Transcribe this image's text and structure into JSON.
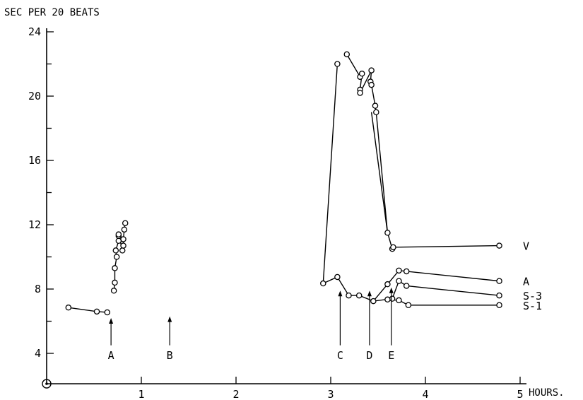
{
  "chart_data": {
    "type": "line",
    "title": "",
    "ylabel": "SEC PER 20 BEATS",
    "xlabel": "HOURS.",
    "xlim": [
      0,
      5
    ],
    "ylim": [
      2,
      24
    ],
    "xticks": [
      1,
      2,
      3,
      4,
      5
    ],
    "xtick_labels": [
      "1",
      "2",
      "3",
      "4",
      "5"
    ],
    "yticks": [
      4,
      8,
      12,
      16,
      20,
      24
    ],
    "ytick_labels": [
      "4",
      "8",
      "12",
      "16",
      "20",
      "24"
    ],
    "grid": false,
    "series": [
      {
        "name": "",
        "points": [
          [
            0.23,
            6.85
          ],
          [
            0.53,
            6.6
          ],
          [
            0.64,
            6.55
          ]
        ]
      },
      {
        "name": "",
        "points": [
          [
            0.71,
            7.9
          ],
          [
            0.72,
            8.4
          ],
          [
            0.72,
            9.3
          ],
          [
            0.74,
            10.0
          ],
          [
            0.73,
            10.4
          ],
          [
            0.76,
            11.0
          ],
          [
            0.76,
            11.3
          ],
          [
            0.76,
            11.4
          ],
          [
            0.8,
            10.4
          ],
          [
            0.81,
            10.7
          ],
          [
            0.81,
            11.1
          ],
          [
            0.82,
            11.7
          ],
          [
            0.83,
            12.1
          ]
        ]
      },
      {
        "name": "V",
        "points": [
          [
            2.92,
            8.35
          ],
          [
            3.07,
            22.0
          ],
          null,
          [
            3.17,
            22.6
          ],
          [
            3.31,
            21.2
          ],
          [
            3.33,
            21.4
          ],
          [
            3.31,
            20.4
          ],
          [
            3.31,
            20.2
          ],
          [
            3.43,
            21.6
          ],
          [
            3.42,
            20.9
          ],
          [
            3.43,
            20.7
          ],
          [
            3.47,
            19.4
          ],
          [
            3.48,
            19.0
          ],
          [
            3.6,
            11.5
          ],
          [
            3.65,
            10.5
          ],
          [
            3.66,
            10.6
          ],
          [
            4.78,
            10.7
          ]
        ]
      },
      {
        "name": "A",
        "points": [
          [
            2.92,
            8.35
          ],
          [
            3.07,
            8.75
          ],
          [
            3.19,
            7.6
          ],
          [
            3.3,
            7.6
          ],
          [
            3.45,
            7.25
          ],
          [
            3.6,
            8.3
          ],
          [
            3.72,
            9.15
          ],
          [
            3.8,
            9.1
          ],
          [
            4.78,
            8.5
          ]
        ]
      },
      {
        "name": "S-3",
        "points": [
          [
            3.45,
            7.25
          ],
          [
            3.65,
            7.4
          ],
          [
            3.72,
            8.5
          ],
          [
            3.8,
            8.2
          ],
          [
            4.78,
            7.6
          ]
        ]
      },
      {
        "name": "S-1",
        "points": [
          [
            3.6,
            7.35
          ],
          [
            3.72,
            7.3
          ],
          [
            3.82,
            7.0
          ],
          [
            4.78,
            7.0
          ]
        ]
      }
    ],
    "extra_segments": [
      [
        [
          3.43,
          19.0
        ],
        [
          3.6,
          11.5
        ]
      ]
    ],
    "annotations": [
      {
        "label": "A",
        "x": 0.68,
        "y": 6.2
      },
      {
        "label": "B",
        "x": 1.3,
        "y": 6.3
      },
      {
        "label": "C",
        "x": 3.1,
        "y": 7.9
      },
      {
        "label": "D",
        "x": 3.41,
        "y": 7.9
      },
      {
        "label": "E",
        "x": 3.64,
        "y": 8.1
      }
    ]
  }
}
